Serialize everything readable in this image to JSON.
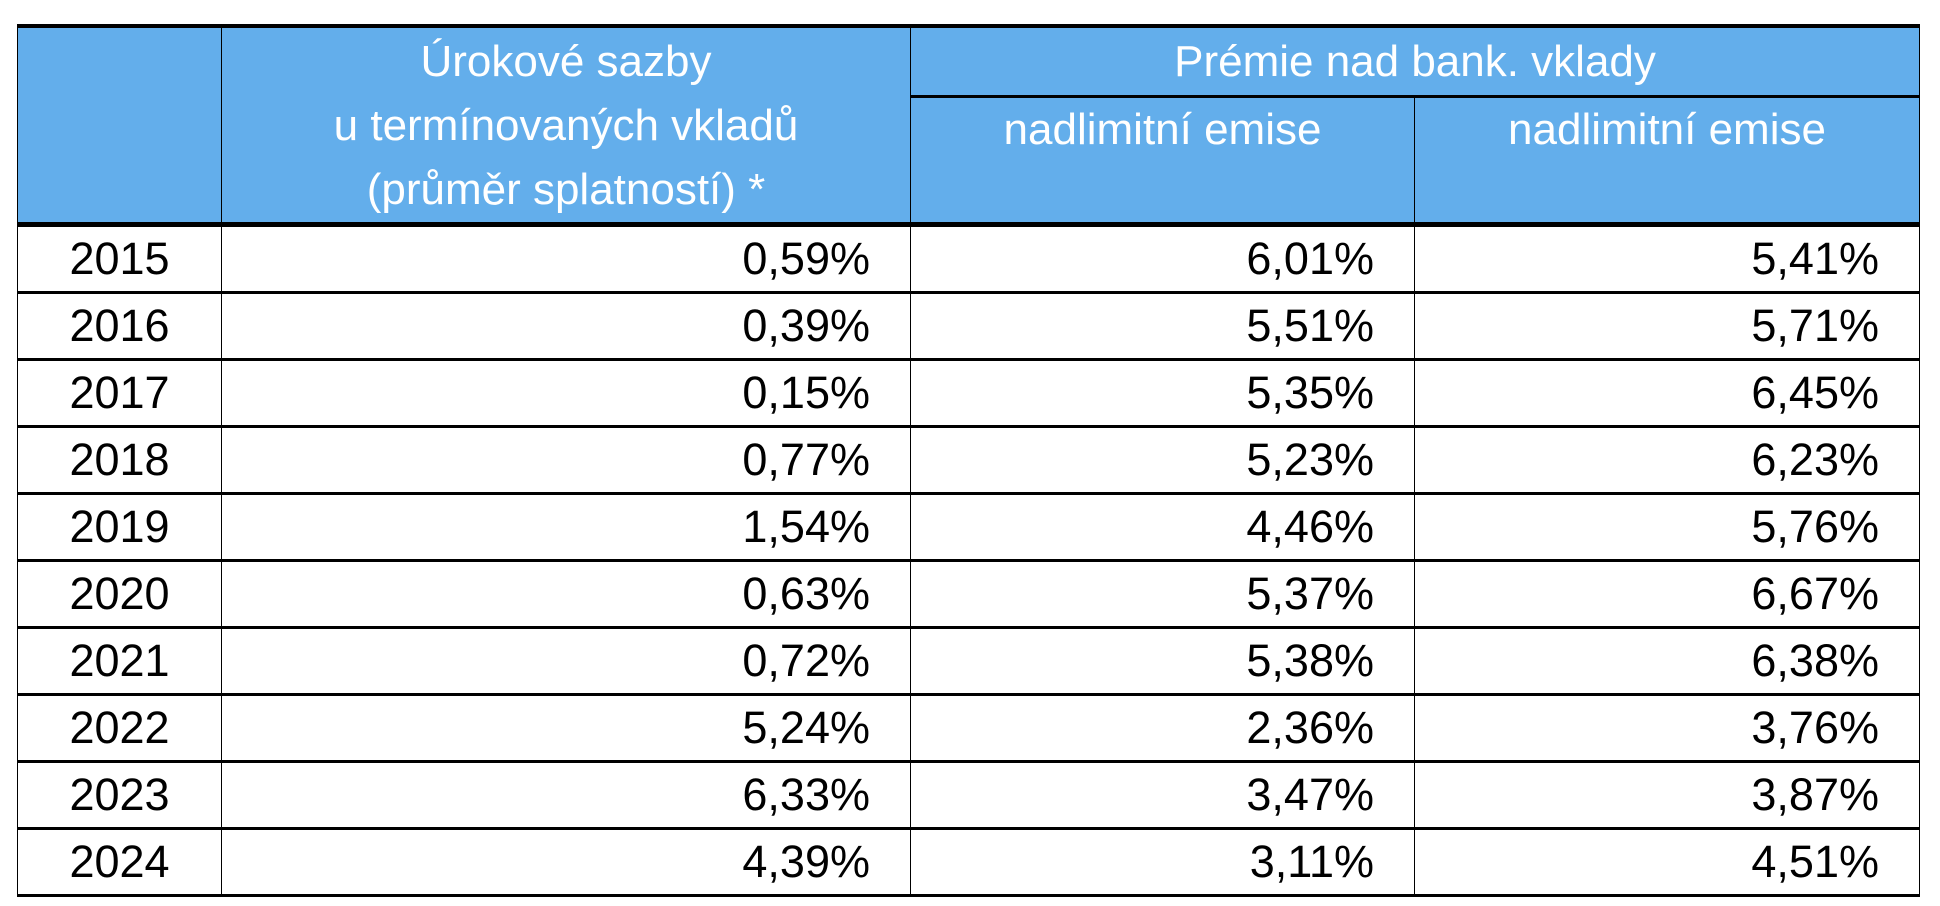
{
  "header": {
    "col_year": "",
    "col_rates": [
      "Úrokové sazby",
      "u termínovaných vkladů",
      "(průměr splatností) *"
    ],
    "group_premium": "Prémie nad bank. vklady",
    "sub_a": "nadlimitní emise",
    "sub_b": "nadlimitní emise"
  },
  "rows": [
    {
      "year": "2015",
      "rate": "0,59%",
      "a": "6,01%",
      "b": "5,41%"
    },
    {
      "year": "2016",
      "rate": "0,39%",
      "a": "5,51%",
      "b": "5,71%"
    },
    {
      "year": "2017",
      "rate": "0,15%",
      "a": "5,35%",
      "b": "6,45%"
    },
    {
      "year": "2018",
      "rate": "0,77%",
      "a": "5,23%",
      "b": "6,23%"
    },
    {
      "year": "2019",
      "rate": "1,54%",
      "a": "4,46%",
      "b": "5,76%"
    },
    {
      "year": "2020",
      "rate": "0,63%",
      "a": "5,37%",
      "b": "6,67%"
    },
    {
      "year": "2021",
      "rate": "0,72%",
      "a": "5,38%",
      "b": "6,38%"
    },
    {
      "year": "2022",
      "rate": "5,24%",
      "a": "2,36%",
      "b": "3,76%"
    },
    {
      "year": "2023",
      "rate": "6,33%",
      "a": "3,47%",
      "b": "3,87%"
    },
    {
      "year": "2024",
      "rate": "4,39%",
      "a": "3,11%",
      "b": "4,51%"
    }
  ],
  "colors": {
    "header_bg": "#63aeeb",
    "header_text": "#ffffff"
  }
}
